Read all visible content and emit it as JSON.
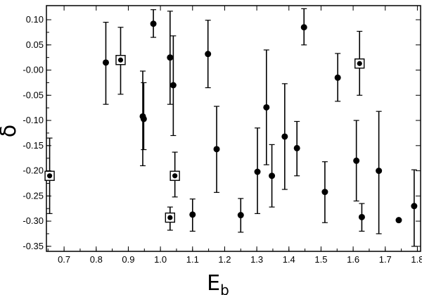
{
  "chart_data": {
    "type": "scatter",
    "xlabel": "E",
    "xlabel_sub": "b",
    "ylabel": "δ",
    "xlim": [
      0.645,
      1.81
    ],
    "ylim": [
      -0.36,
      0.128
    ],
    "xticks": [
      "0.7",
      "0.8",
      "0.9",
      "1.0",
      "1.1",
      "1.2",
      "1.3",
      "1.4",
      "1.5",
      "1.6",
      "1.7",
      "1.8"
    ],
    "xtick_values": [
      0.7,
      0.8,
      0.9,
      1.0,
      1.1,
      1.2,
      1.3,
      1.4,
      1.5,
      1.6,
      1.7,
      1.8
    ],
    "yticks": [
      "0.10",
      "0.05",
      "-0.00",
      "-0.05",
      "-0.10",
      "-0.15",
      "-0.20",
      "-0.25",
      "-0.30",
      "-0.35"
    ],
    "ytick_values": [
      0.1,
      0.05,
      0.0,
      -0.05,
      -0.1,
      -0.15,
      -0.2,
      -0.25,
      -0.3,
      -0.35
    ],
    "grid": false,
    "legend": "none",
    "points": [
      {
        "x": 0.655,
        "y": -0.21,
        "err_lo": -0.285,
        "err_hi": -0.135,
        "boxed": true
      },
      {
        "x": 0.83,
        "y": 0.015,
        "err_lo": -0.068,
        "err_hi": 0.095,
        "boxed": false
      },
      {
        "x": 0.876,
        "y": 0.02,
        "err_lo": -0.048,
        "err_hi": 0.085,
        "boxed": true
      },
      {
        "x": 0.945,
        "y": -0.092,
        "err_lo": -0.19,
        "err_hi": -0.002,
        "boxed": false
      },
      {
        "x": 0.948,
        "y": -0.097,
        "err_lo": -0.158,
        "err_hi": -0.025,
        "boxed": false
      },
      {
        "x": 0.978,
        "y": 0.092,
        "err_lo": 0.065,
        "err_hi": 0.12,
        "boxed": false
      },
      {
        "x": 1.03,
        "y": 0.025,
        "err_lo": -0.068,
        "err_hi": 0.117,
        "boxed": false
      },
      {
        "x": 1.03,
        "y": -0.293,
        "err_lo": -0.318,
        "err_hi": -0.272,
        "boxed": true
      },
      {
        "x": 1.04,
        "y": -0.03,
        "err_lo": -0.13,
        "err_hi": 0.068,
        "boxed": false
      },
      {
        "x": 1.045,
        "y": -0.21,
        "err_lo": -0.252,
        "err_hi": -0.163,
        "boxed": true
      },
      {
        "x": 1.1,
        "y": -0.287,
        "err_lo": -0.32,
        "err_hi": -0.256,
        "boxed": false
      },
      {
        "x": 1.148,
        "y": 0.032,
        "err_lo": -0.035,
        "err_hi": 0.099,
        "boxed": false
      },
      {
        "x": 1.175,
        "y": -0.157,
        "err_lo": -0.243,
        "err_hi": -0.072,
        "boxed": false
      },
      {
        "x": 1.25,
        "y": -0.288,
        "err_lo": -0.322,
        "err_hi": -0.255,
        "boxed": false
      },
      {
        "x": 1.302,
        "y": -0.202,
        "err_lo": -0.285,
        "err_hi": -0.115,
        "boxed": false
      },
      {
        "x": 1.33,
        "y": -0.074,
        "err_lo": -0.188,
        "err_hi": 0.04,
        "boxed": false
      },
      {
        "x": 1.347,
        "y": -0.21,
        "err_lo": -0.272,
        "err_hi": -0.148,
        "boxed": false
      },
      {
        "x": 1.387,
        "y": -0.132,
        "err_lo": -0.237,
        "err_hi": -0.027,
        "boxed": false
      },
      {
        "x": 1.425,
        "y": -0.155,
        "err_lo": -0.21,
        "err_hi": -0.102,
        "boxed": false
      },
      {
        "x": 1.447,
        "y": 0.085,
        "err_lo": 0.05,
        "err_hi": 0.122,
        "boxed": false
      },
      {
        "x": 1.512,
        "y": -0.242,
        "err_lo": -0.303,
        "err_hi": -0.182,
        "boxed": false
      },
      {
        "x": 1.552,
        "y": -0.015,
        "err_lo": -0.062,
        "err_hi": 0.033,
        "boxed": false
      },
      {
        "x": 1.61,
        "y": -0.18,
        "err_lo": -0.26,
        "err_hi": -0.1,
        "boxed": false
      },
      {
        "x": 1.62,
        "y": 0.013,
        "err_lo": -0.05,
        "err_hi": 0.077,
        "boxed": true
      },
      {
        "x": 1.627,
        "y": -0.292,
        "err_lo": -0.32,
        "err_hi": -0.265,
        "boxed": false
      },
      {
        "x": 1.68,
        "y": -0.2,
        "err_lo": -0.325,
        "err_hi": -0.082,
        "boxed": false
      },
      {
        "x": 1.742,
        "y": -0.298,
        "err_lo": -0.298,
        "err_hi": -0.298,
        "boxed": false
      },
      {
        "x": 1.79,
        "y": -0.27,
        "err_lo": -0.35,
        "err_hi": -0.198,
        "boxed": false
      }
    ]
  }
}
